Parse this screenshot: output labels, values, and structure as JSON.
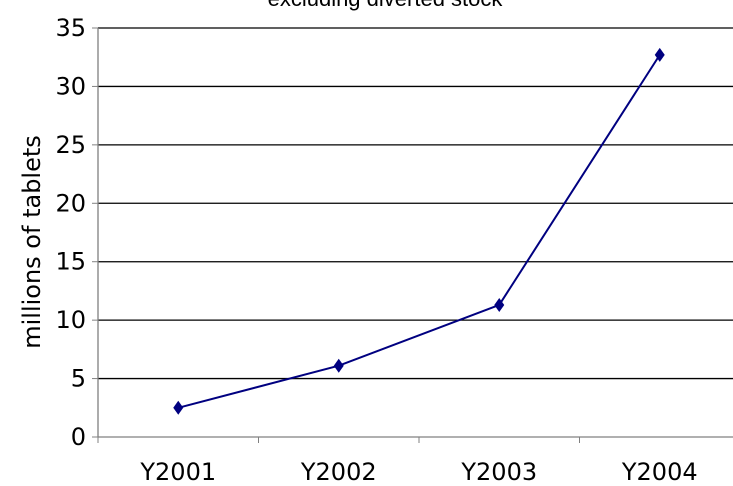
{
  "chart_data": {
    "type": "line",
    "title": "excluding diverted stock",
    "xlabel": "",
    "ylabel": "millions of tablets",
    "categories": [
      "Y2001",
      "Y2002",
      "Y2003",
      "Y2004"
    ],
    "series": [
      {
        "values": [
          2.5,
          6.1,
          11.3,
          32.7
        ]
      }
    ],
    "ylim": [
      0,
      35
    ],
    "yticks": [
      "0",
      "5",
      "10",
      "15",
      "20",
      "25",
      "30",
      "35"
    ],
    "grid": true,
    "legend": "none",
    "colors": {
      "line": "#000080",
      "marker": "#000080",
      "grid": "#000000",
      "axis": "#808080"
    }
  }
}
